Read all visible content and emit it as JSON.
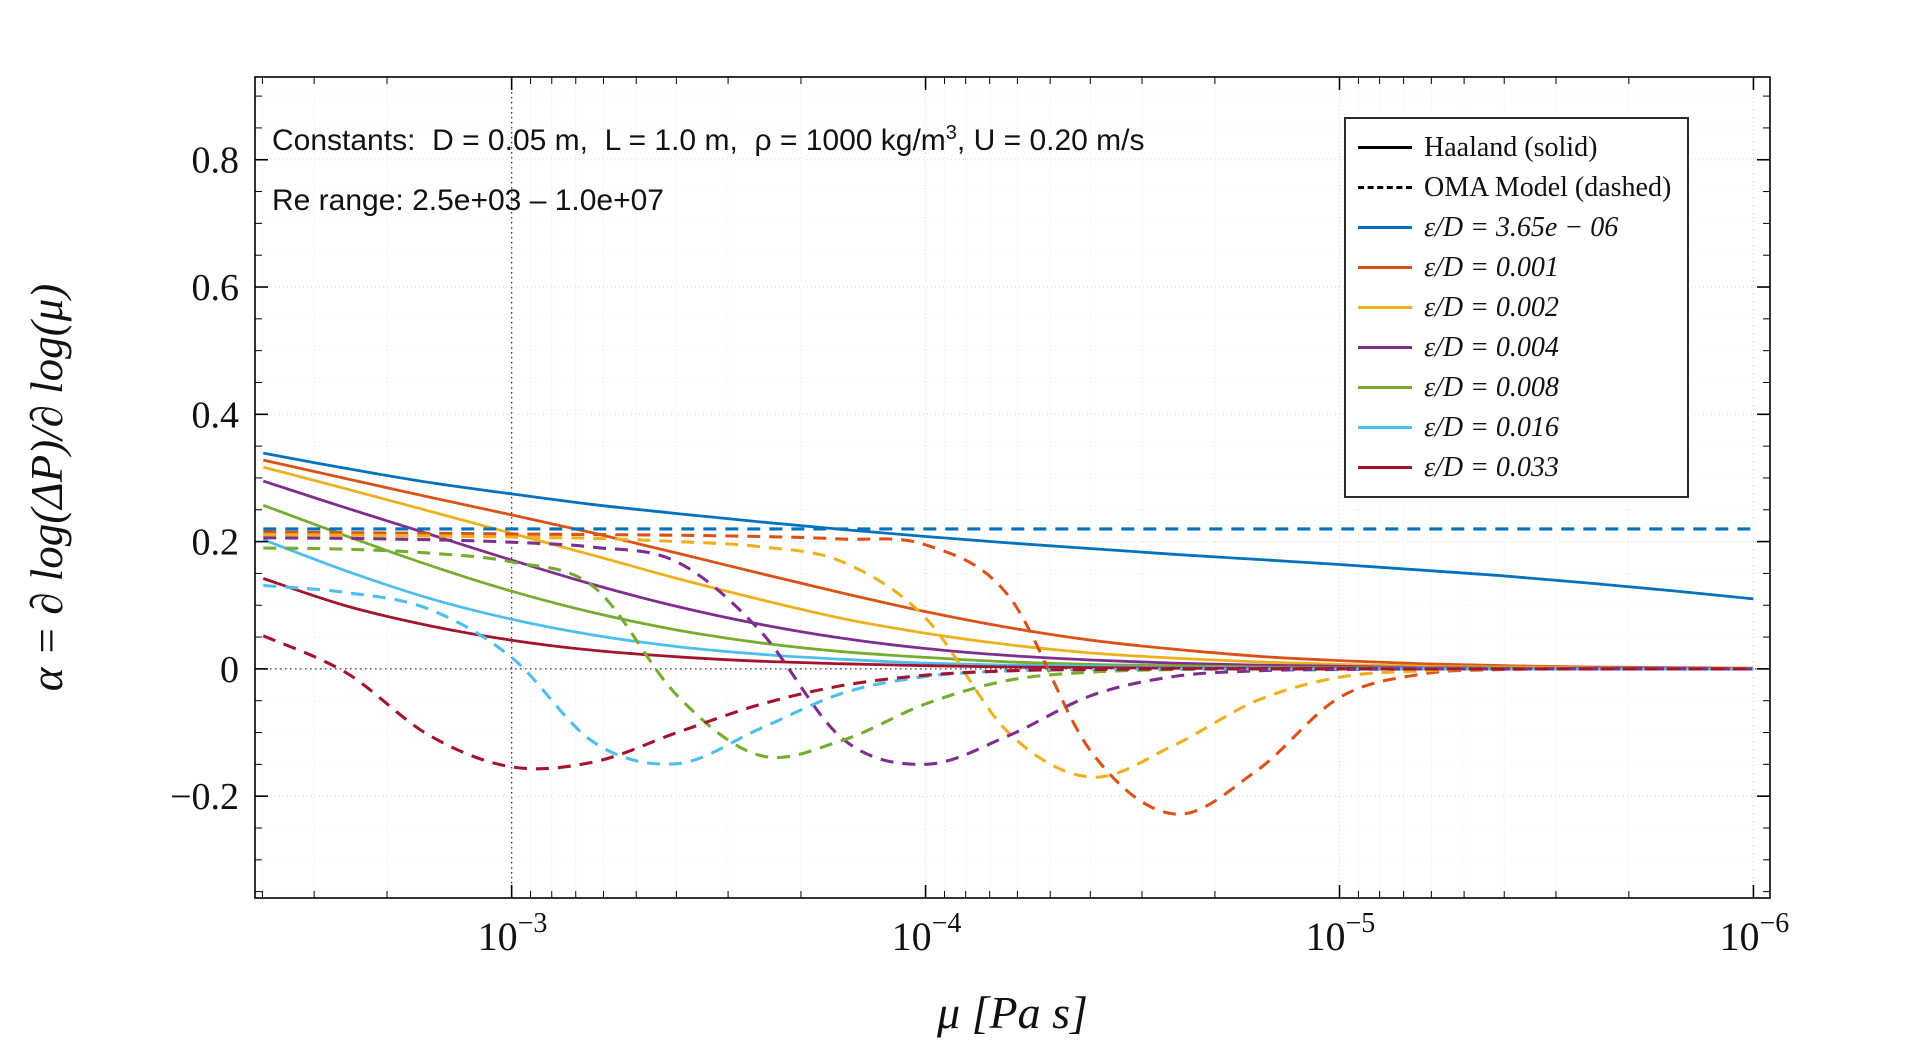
{
  "figure": {
    "annotations": {
      "constants_prefix": "Constants:  D = 0.05 m,  L = 1.0 m,  ρ = 1000 kg/m",
      "constants_sup": "3",
      "constants_suffix": ", U = 0.20 m/s",
      "re_range": "Re range: 2.5e+03 – 1.0e+07"
    }
  },
  "chart_data": {
    "type": "line",
    "title": "",
    "xlabel": "μ [Pa s]",
    "ylabel": "α = ∂ log(ΔP)/∂ log(μ)",
    "x_axis": {
      "scale": "log",
      "reversed": true,
      "min_log10": -2.38,
      "max_log10": -6.04,
      "tick_exponents": [
        -3,
        -4,
        -5,
        -6
      ],
      "unit": "Pa s"
    },
    "y_axis": {
      "min": -0.36,
      "max": 0.93,
      "ticks": [
        -0.2,
        0,
        0.2,
        0.4,
        0.6,
        0.8
      ]
    },
    "reference_lines": {
      "vertical_log10_mu": -3,
      "horizontal_alpha": 0
    },
    "grid": "on",
    "legend_position": "top-right",
    "legend": [
      {
        "label": "Haaland (solid)",
        "color": "#000000",
        "style": "solid",
        "italic": false
      },
      {
        "label": "OMA Model (dashed)",
        "color": "#000000",
        "style": "dashed",
        "italic": false
      },
      {
        "label": "ε/D = 3.65e − 06",
        "color": "#0072BD",
        "style": "solid",
        "italic": true
      },
      {
        "label": "ε/D = 0.001",
        "color": "#D95319",
        "style": "solid",
        "italic": true
      },
      {
        "label": "ε/D = 0.002",
        "color": "#EDB120",
        "style": "solid",
        "italic": true
      },
      {
        "label": "ε/D = 0.004",
        "color": "#7E2F8E",
        "style": "solid",
        "italic": true
      },
      {
        "label": "ε/D = 0.008",
        "color": "#77AC30",
        "style": "solid",
        "italic": true
      },
      {
        "label": "ε/D = 0.016",
        "color": "#4DBEEE",
        "style": "solid",
        "italic": true
      },
      {
        "label": "ε/D = 0.033",
        "color": "#A2142F",
        "style": "solid",
        "italic": true
      }
    ],
    "x_log10_mu": [
      -2.4,
      -2.6,
      -2.8,
      -3.0,
      -3.2,
      -3.4,
      -3.6,
      -3.8,
      -4.0,
      -4.2,
      -4.4,
      -4.6,
      -4.8,
      -5.0,
      -5.2,
      -5.4,
      -5.6,
      -5.8,
      -6.0
    ],
    "series": [
      {
        "name": "Haaland eps/D=3.65e-06",
        "model": "Haaland",
        "eps_over_D": "3.65e-06",
        "color": "#0072BD",
        "style": "solid",
        "alpha": [
          0.339,
          0.315,
          0.293,
          0.275,
          0.258,
          0.244,
          0.231,
          0.219,
          0.208,
          0.198,
          0.189,
          0.18,
          0.172,
          0.164,
          0.155,
          0.146,
          0.135,
          0.123,
          0.11
        ]
      },
      {
        "name": "Haaland eps/D=0.001",
        "model": "Haaland",
        "eps_over_D": "0.001",
        "color": "#D95319",
        "style": "solid",
        "alpha": [
          0.328,
          0.299,
          0.27,
          0.242,
          0.213,
          0.182,
          0.15,
          0.119,
          0.09,
          0.065,
          0.045,
          0.031,
          0.02,
          0.013,
          0.008,
          0.005,
          0.003,
          0.002,
          0.001
        ]
      },
      {
        "name": "Haaland eps/D=0.002",
        "model": "Haaland",
        "eps_over_D": "0.002",
        "color": "#EDB120",
        "style": "solid",
        "alpha": [
          0.317,
          0.283,
          0.248,
          0.213,
          0.178,
          0.142,
          0.109,
          0.079,
          0.056,
          0.038,
          0.025,
          0.017,
          0.011,
          0.007,
          0.004,
          0.003,
          0.002,
          0.001,
          0.001
        ]
      },
      {
        "name": "Haaland eps/D=0.004",
        "model": "Haaland",
        "eps_over_D": "0.004",
        "color": "#7E2F8E",
        "style": "solid",
        "alpha": [
          0.295,
          0.253,
          0.212,
          0.171,
          0.132,
          0.098,
          0.07,
          0.048,
          0.032,
          0.021,
          0.014,
          0.009,
          0.006,
          0.004,
          0.002,
          0.001,
          0.001,
          0.001,
          0.0
        ]
      },
      {
        "name": "Haaland eps/D=0.008",
        "model": "Haaland",
        "eps_over_D": "0.008",
        "color": "#77AC30",
        "style": "solid",
        "alpha": [
          0.257,
          0.209,
          0.163,
          0.122,
          0.088,
          0.061,
          0.041,
          0.027,
          0.018,
          0.011,
          0.007,
          0.005,
          0.003,
          0.002,
          0.001,
          0.001,
          0.0,
          0.0,
          0.0
        ]
      },
      {
        "name": "Haaland eps/D=0.016",
        "model": "Haaland",
        "eps_over_D": "0.016",
        "color": "#4DBEEE",
        "style": "solid",
        "alpha": [
          0.203,
          0.154,
          0.111,
          0.078,
          0.053,
          0.035,
          0.023,
          0.015,
          0.009,
          0.006,
          0.004,
          0.002,
          0.002,
          0.001,
          0.001,
          0.0,
          0.0,
          0.0,
          0.0
        ]
      },
      {
        "name": "Haaland eps/D=0.033",
        "model": "Haaland",
        "eps_over_D": "0.033",
        "color": "#A2142F",
        "style": "solid",
        "alpha": [
          0.142,
          0.099,
          0.068,
          0.045,
          0.029,
          0.019,
          0.012,
          0.008,
          0.005,
          0.003,
          0.002,
          0.001,
          0.001,
          0.001,
          0.0,
          0.0,
          0.0,
          0.0,
          0.0
        ]
      },
      {
        "name": "OMA eps/D=3.65e-06",
        "model": "OMA",
        "eps_over_D": "3.65e-06",
        "color": "#0072BD",
        "style": "dashed",
        "alpha": [
          0.22,
          0.22,
          0.22,
          0.22,
          0.22,
          0.22,
          0.22,
          0.22,
          0.22,
          0.22,
          0.22,
          0.22,
          0.22,
          0.22,
          0.22,
          0.22,
          0.22,
          0.22,
          0.22
        ]
      },
      {
        "name": "OMA eps/D=0.001",
        "model": "OMA",
        "eps_over_D": "0.001",
        "color": "#D95319",
        "style": "dashed",
        "alpha": [
          0.215,
          0.214,
          0.213,
          0.212,
          0.211,
          0.21,
          0.208,
          0.204,
          0.195,
          0.115,
          -0.13,
          -0.228,
          -0.16,
          -0.045,
          -0.008,
          -0.001,
          0.0,
          0.0,
          0.0
        ]
      },
      {
        "name": "OMA eps/D=0.002",
        "model": "OMA",
        "eps_over_D": "0.002",
        "color": "#EDB120",
        "style": "dashed",
        "alpha": [
          0.211,
          0.21,
          0.209,
          0.207,
          0.205,
          0.2,
          0.192,
          0.168,
          0.08,
          -0.1,
          -0.17,
          -0.12,
          -0.05,
          -0.013,
          -0.003,
          0.0,
          0.0,
          0.0,
          0.0
        ]
      },
      {
        "name": "OMA eps/D=0.004",
        "model": "OMA",
        "eps_over_D": "0.004",
        "color": "#7E2F8E",
        "style": "dashed",
        "alpha": [
          0.206,
          0.205,
          0.203,
          0.199,
          0.191,
          0.168,
          0.06,
          -0.11,
          -0.15,
          -0.105,
          -0.042,
          -0.012,
          -0.003,
          -0.001,
          0.0,
          0.0,
          0.0,
          0.0,
          0.0
        ]
      },
      {
        "name": "OMA eps/D=0.008",
        "model": "OMA",
        "eps_over_D": "0.008",
        "color": "#77AC30",
        "style": "dashed",
        "alpha": [
          0.19,
          0.188,
          0.182,
          0.168,
          0.128,
          -0.042,
          -0.136,
          -0.112,
          -0.055,
          -0.018,
          -0.005,
          -0.001,
          0.0,
          0.0,
          0.0,
          0.0,
          0.0,
          0.0,
          0.0
        ]
      },
      {
        "name": "OMA eps/D=0.016",
        "model": "OMA",
        "eps_over_D": "0.016",
        "color": "#4DBEEE",
        "style": "dashed",
        "alpha": [
          0.131,
          0.12,
          0.094,
          0.018,
          -0.116,
          -0.149,
          -0.094,
          -0.038,
          -0.012,
          -0.003,
          -0.001,
          0.0,
          0.0,
          0.0,
          0.0,
          0.0,
          0.0,
          0.0,
          0.0
        ]
      },
      {
        "name": "OMA eps/D=0.033",
        "model": "OMA",
        "eps_over_D": "0.033",
        "color": "#A2142F",
        "style": "dashed",
        "alpha": [
          0.052,
          -0.006,
          -0.104,
          -0.154,
          -0.146,
          -0.1,
          -0.056,
          -0.026,
          -0.01,
          -0.003,
          -0.001,
          0.0,
          0.0,
          0.0,
          0.0,
          0.0,
          0.0,
          0.0,
          0.0
        ]
      }
    ]
  }
}
